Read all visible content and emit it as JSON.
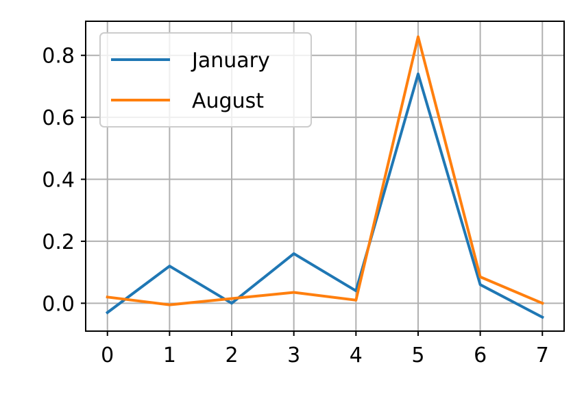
{
  "chart_data": {
    "type": "line",
    "title": "",
    "xlabel": "",
    "ylabel": "",
    "x": [
      0,
      1,
      2,
      3,
      4,
      5,
      6,
      7
    ],
    "xlim": [
      -0.35,
      7.35
    ],
    "ylim": [
      -0.09,
      0.91
    ],
    "xticks": [
      0,
      1,
      2,
      3,
      4,
      5,
      6,
      7
    ],
    "yticks": [
      0.0,
      0.2,
      0.4,
      0.6,
      0.8
    ],
    "ytick_labels": [
      "0.0",
      "0.2",
      "0.4",
      "0.6",
      "0.8"
    ],
    "grid": true,
    "legend_position": "top-left",
    "series": [
      {
        "name": "January",
        "color": "#1f77b4",
        "values": [
          -0.03,
          0.12,
          0.0,
          0.16,
          0.04,
          0.74,
          0.06,
          -0.045
        ]
      },
      {
        "name": "August",
        "color": "#ff7f0e",
        "values": [
          0.02,
          -0.005,
          0.015,
          0.035,
          0.01,
          0.86,
          0.085,
          0.0
        ]
      }
    ]
  }
}
